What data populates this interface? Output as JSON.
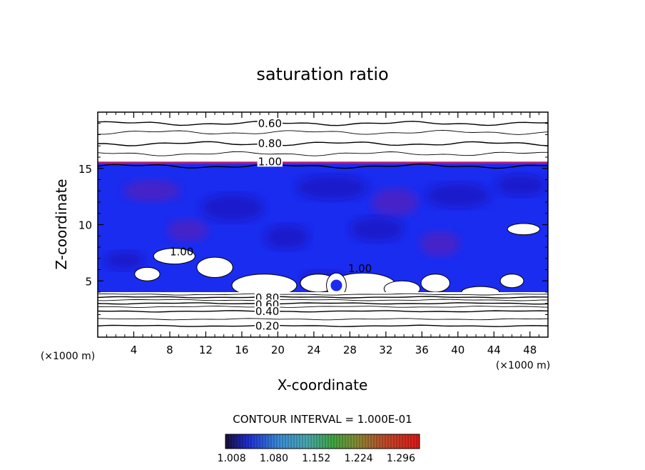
{
  "chart_data": {
    "type": "heatmap",
    "title": "saturation ratio",
    "xlabel": "X-coordinate",
    "ylabel": "Z-coordinate",
    "x_unit_label": "(×1000 m)",
    "y_unit_label": "(×1000 m)",
    "xlim": [
      0,
      50
    ],
    "ylim": [
      0,
      20
    ],
    "x_ticks": [
      4,
      8,
      12,
      16,
      20,
      24,
      28,
      32,
      36,
      40,
      44,
      48
    ],
    "y_ticks": [
      5,
      10,
      15
    ],
    "contour_interval_text": "CONTOUR INTERVAL = 1.000E-01",
    "contour_labels": [
      {
        "text": "0.60",
        "x": 17.8,
        "z": 19.0
      },
      {
        "text": "0.80",
        "x": 17.8,
        "z": 17.2
      },
      {
        "text": "1.00",
        "x": 17.8,
        "z": 15.6
      },
      {
        "text": "1.00",
        "x": 8.0,
        "z": 7.6
      },
      {
        "text": "1.00",
        "x": 27.8,
        "z": 6.1
      },
      {
        "text": "0.80",
        "x": 17.5,
        "z": 3.5
      },
      {
        "text": "0.60",
        "x": 17.5,
        "z": 2.9
      },
      {
        "text": "0.40",
        "x": 17.5,
        "z": 2.3
      },
      {
        "text": "0.20",
        "x": 17.5,
        "z": 1.0
      }
    ],
    "subsat_contour_levels_z": [
      {
        "level": 0.2,
        "z": 1.0
      },
      {
        "level": 0.3,
        "z": 1.6
      },
      {
        "level": 0.4,
        "z": 2.3
      },
      {
        "level": 0.5,
        "z": 2.7
      },
      {
        "level": 0.6,
        "z": 3.0
      },
      {
        "level": 0.7,
        "z": 3.3
      },
      {
        "level": 0.8,
        "z": 3.55
      },
      {
        "level": 0.9,
        "z": 3.8
      }
    ],
    "upper_contour_levels_z": [
      {
        "level": 1.0,
        "z": 15.2
      },
      {
        "level": 0.9,
        "z": 16.3
      },
      {
        "level": 0.8,
        "z": 17.2
      },
      {
        "level": 0.7,
        "z": 18.2
      },
      {
        "level": 0.6,
        "z": 19.0
      }
    ],
    "supersat_layer_z": [
      4.0,
      15.4
    ],
    "colorbar": {
      "ticks": [
        1.008,
        1.08,
        1.152,
        1.224,
        1.296
      ],
      "tick_labels": [
        "1.008",
        "1.080",
        "1.152",
        "1.224",
        "1.296"
      ],
      "range": [
        1.0,
        1.33
      ]
    },
    "colors": {
      "band_blue": "#1a2cf0",
      "band_dark": "#1a10b0",
      "band_purple": "#6a1ba8",
      "edge_magenta": "#b0207a"
    }
  }
}
